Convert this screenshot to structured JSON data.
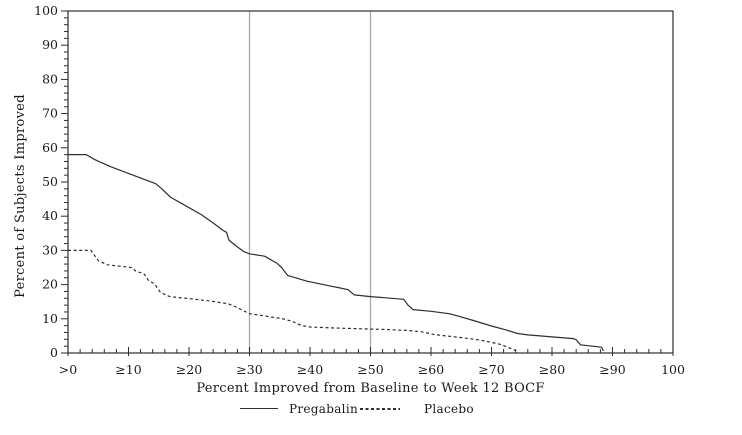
{
  "chart_data": {
    "type": "line",
    "title": "",
    "xlabel": "Percent Improved from Baseline to Week 12 BOCF",
    "ylabel": "Percent of Subjects Improved",
    "xlim": [
      0,
      100
    ],
    "ylim": [
      0,
      100
    ],
    "xtick_interval": 10,
    "ytick_interval": 10,
    "minor_tick_interval": 2,
    "xtick_labels": [
      ">0",
      "≥10",
      "≥20",
      "≥30",
      "≥40",
      "≥50",
      "≥60",
      "≥70",
      "≥80",
      "≥90",
      "100"
    ],
    "ytick_labels": [
      "0",
      "10",
      "20",
      "30",
      "40",
      "50",
      "60",
      "70",
      "80",
      "90",
      "100"
    ],
    "reference_lines_x": [
      30,
      50
    ],
    "grid": false,
    "legend_position": "bottom-center",
    "colors": {
      "frame": "#2e2e2e",
      "curve": "#2e2e2e",
      "reference_line": "#a9a9a9",
      "text": "#1a1a1a",
      "background": "#ffffff"
    },
    "series": [
      {
        "name": "Pregabalin",
        "style": "solid",
        "color": "#2e2e2e",
        "points": [
          [
            0,
            58
          ],
          [
            3,
            58
          ],
          [
            4.5,
            56.5
          ],
          [
            7,
            54.5
          ],
          [
            10,
            52.5
          ],
          [
            13,
            50.5
          ],
          [
            14.5,
            49.5
          ],
          [
            15.5,
            48
          ],
          [
            17,
            45.5
          ],
          [
            19,
            43.5
          ],
          [
            22,
            40.5
          ],
          [
            24,
            38
          ],
          [
            25.5,
            36
          ],
          [
            26.2,
            35.3
          ],
          [
            26.6,
            33
          ],
          [
            27.5,
            31.7
          ],
          [
            29,
            29.7
          ],
          [
            30,
            29
          ],
          [
            32.5,
            28.3
          ],
          [
            34.5,
            26.3
          ],
          [
            35.3,
            25
          ],
          [
            36.3,
            22.7
          ],
          [
            39.5,
            21
          ],
          [
            43,
            19.7
          ],
          [
            45,
            19
          ],
          [
            46.3,
            18.5
          ],
          [
            47.3,
            17
          ],
          [
            50,
            16.5
          ],
          [
            55.5,
            15.7
          ],
          [
            56.2,
            14
          ],
          [
            57,
            12.7
          ],
          [
            60,
            12.2
          ],
          [
            63,
            11.5
          ],
          [
            64.5,
            10.8
          ],
          [
            67,
            9.5
          ],
          [
            70,
            7.9
          ],
          [
            72.5,
            6.7
          ],
          [
            74.3,
            5.7
          ],
          [
            76,
            5.3
          ],
          [
            80,
            4.7
          ],
          [
            83.5,
            4.2
          ],
          [
            84,
            3.9
          ],
          [
            84.7,
            2.4
          ],
          [
            88.2,
            1.7
          ],
          [
            88.5,
            0.6
          ]
        ]
      },
      {
        "name": "Placebo",
        "style": "dashed",
        "color": "#2e2e2e",
        "points": [
          [
            0,
            30
          ],
          [
            3.8,
            30
          ],
          [
            5,
            27
          ],
          [
            6.5,
            25.8
          ],
          [
            10.5,
            25
          ],
          [
            11.3,
            23.8
          ],
          [
            12.5,
            23.3
          ],
          [
            13.3,
            21.2
          ],
          [
            14.3,
            20.2
          ],
          [
            15.3,
            17.7
          ],
          [
            16.8,
            16.5
          ],
          [
            20,
            15.9
          ],
          [
            23.5,
            15.2
          ],
          [
            26.5,
            14.4
          ],
          [
            27.6,
            13.6
          ],
          [
            30,
            11.5
          ],
          [
            33,
            10.7
          ],
          [
            35.5,
            10
          ],
          [
            37,
            9.3
          ],
          [
            38.5,
            8.1
          ],
          [
            40,
            7.6
          ],
          [
            44,
            7.3
          ],
          [
            48,
            7.1
          ],
          [
            52,
            6.9
          ],
          [
            56,
            6.6
          ],
          [
            58.5,
            6.2
          ],
          [
            60.5,
            5.4
          ],
          [
            62.5,
            5
          ],
          [
            65,
            4.5
          ],
          [
            68,
            3.8
          ],
          [
            70,
            3.1
          ],
          [
            71.5,
            2.5
          ],
          [
            72.8,
            1.6
          ],
          [
            74,
            0.7
          ]
        ]
      }
    ]
  }
}
